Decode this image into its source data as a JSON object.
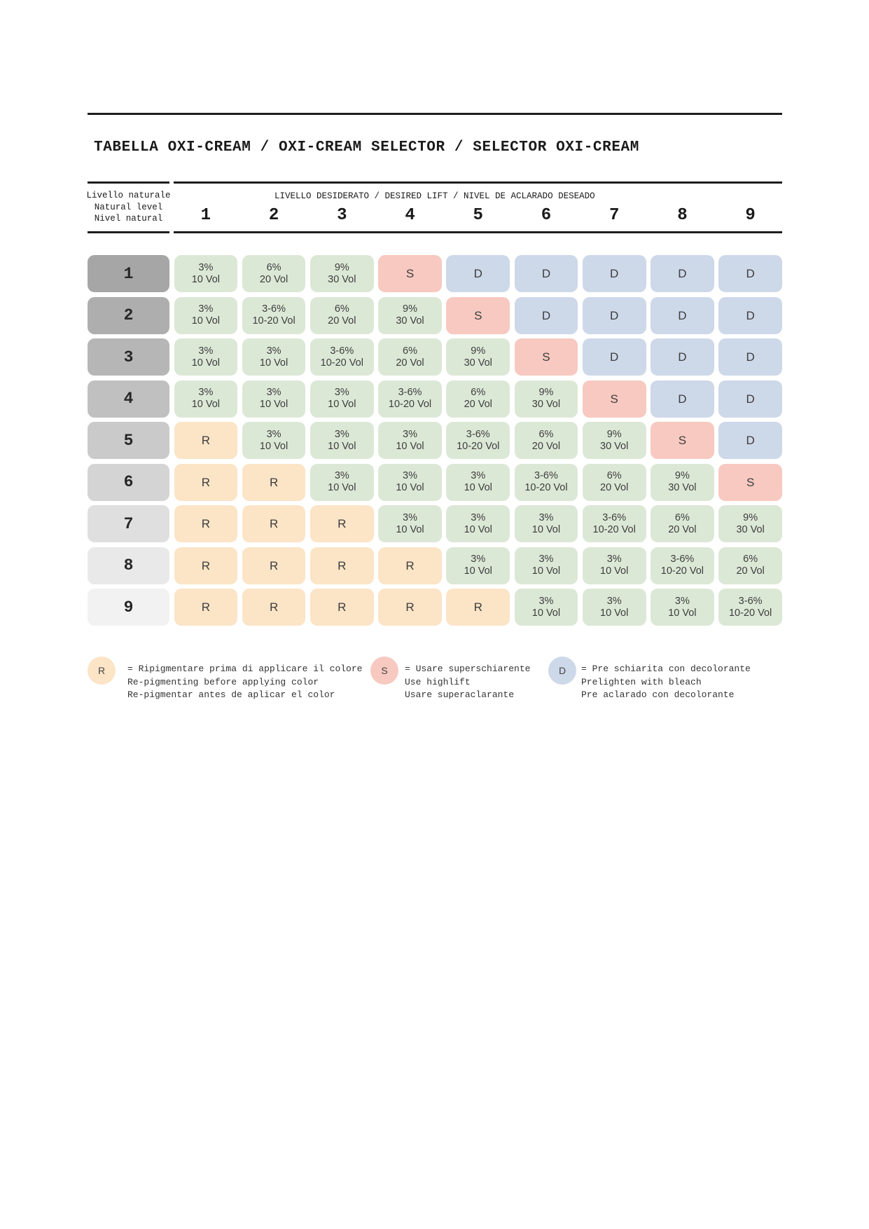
{
  "title": "TABELLA OXI-CREAM / OXI-CREAM SELECTOR / SELECTOR OXI-CREAM",
  "header": {
    "natural_level_label_lines": [
      "Livello naturale",
      "Natural level",
      "Nivel natural"
    ],
    "desired_lift_label": "LIVELLO DESIDERATO / DESIRED LIFT / NIVEL DE ACLARADO DESEADO",
    "columns": [
      "1",
      "2",
      "3",
      "4",
      "5",
      "6",
      "7",
      "8",
      "9"
    ]
  },
  "colors": {
    "rule": "#1d1d1d",
    "cell_text": "#3d3d3d",
    "developer_bg": "#dce8d6",
    "highlift_bg": "#f7c9c0",
    "prelighten_bg": "#cdd8e9",
    "repigment_bg": "#fce4c7",
    "level_bgs": [
      "#a6a6a6",
      "#aeaeae",
      "#b6b6b6",
      "#c0c0c0",
      "#cacaca",
      "#d4d4d4",
      "#dfdfdf",
      "#e9e9e9",
      "#f2f2f2"
    ]
  },
  "table": {
    "rows": [
      {
        "level": "1",
        "cells": [
          "3%|10 Vol",
          "6%|20 Vol",
          "9%|30 Vol",
          "S",
          "D",
          "D",
          "D",
          "D",
          "D"
        ]
      },
      {
        "level": "2",
        "cells": [
          "3%|10 Vol",
          "3-6%|10-20 Vol",
          "6%|20 Vol",
          "9%|30 Vol",
          "S",
          "D",
          "D",
          "D",
          "D"
        ]
      },
      {
        "level": "3",
        "cells": [
          "3%|10 Vol",
          "3%|10 Vol",
          "3-6%|10-20 Vol",
          "6%|20 Vol",
          "9%|30 Vol",
          "S",
          "D",
          "D",
          "D"
        ]
      },
      {
        "level": "4",
        "cells": [
          "3%|10 Vol",
          "3%|10 Vol",
          "3%|10 Vol",
          "3-6%|10-20 Vol",
          "6%|20 Vol",
          "9%|30 Vol",
          "S",
          "D",
          "D"
        ]
      },
      {
        "level": "5",
        "cells": [
          "R",
          "3%|10 Vol",
          "3%|10 Vol",
          "3%|10 Vol",
          "3-6%|10-20 Vol",
          "6%|20 Vol",
          "9%|30 Vol",
          "S",
          "D"
        ]
      },
      {
        "level": "6",
        "cells": [
          "R",
          "R",
          "3%|10 Vol",
          "3%|10 Vol",
          "3%|10 Vol",
          "3-6%|10-20 Vol",
          "6%|20 Vol",
          "9%|30 Vol",
          "S"
        ]
      },
      {
        "level": "7",
        "cells": [
          "R",
          "R",
          "R",
          "3%|10 Vol",
          "3%|10 Vol",
          "3%|10 Vol",
          "3-6%|10-20 Vol",
          "6%|20 Vol",
          "9%|30 Vol"
        ]
      },
      {
        "level": "8",
        "cells": [
          "R",
          "R",
          "R",
          "R",
          "3%|10 Vol",
          "3%|10 Vol",
          "3%|10 Vol",
          "3-6%|10-20 Vol",
          "6%|20 Vol"
        ]
      },
      {
        "level": "9",
        "cells": [
          "R",
          "R",
          "R",
          "R",
          "R",
          "3%|10 Vol",
          "3%|10 Vol",
          "3%|10 Vol",
          "3-6%|10-20 Vol"
        ]
      }
    ]
  },
  "legend": [
    {
      "symbol": "R",
      "meaning_lines": [
        "= Ripigmentare prima di applicare il colore",
        "Re-pigmenting before applying color",
        "Re-pigmentar antes de aplicar el color"
      ]
    },
    {
      "symbol": "S",
      "meaning_lines": [
        "= Usare superschiarente",
        "Use highlift",
        "Usare superaclarante"
      ]
    },
    {
      "symbol": "D",
      "meaning_lines": [
        "= Pre schiarita con decolorante",
        "Prelighten with bleach",
        "Pre aclarado con decolorante"
      ]
    }
  ]
}
